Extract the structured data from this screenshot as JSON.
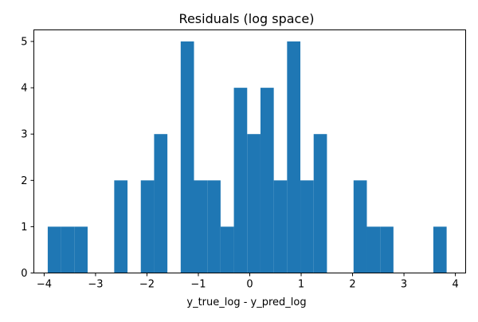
{
  "chart_data": {
    "type": "histogram",
    "title": "Residuals (log space)",
    "xlabel": "y_true_log - y_pred_log",
    "ylabel": "",
    "bar_color": "#1f77b4",
    "xlim": [
      -4.2,
      4.2
    ],
    "ylim": [
      0,
      5.25
    ],
    "xticks": [
      -4,
      -3,
      -2,
      -1,
      0,
      1,
      2,
      3,
      4
    ],
    "yticks": [
      0,
      1,
      2,
      3,
      4,
      5
    ],
    "grid": false,
    "bin_range": [
      -3.93,
      3.83
    ],
    "bin_counts": [
      1,
      1,
      1,
      0,
      0,
      2,
      0,
      2,
      3,
      0,
      5,
      2,
      2,
      1,
      4,
      3,
      4,
      2,
      5,
      2,
      3,
      0,
      0,
      2,
      1,
      1,
      0,
      0,
      0,
      1
    ]
  }
}
